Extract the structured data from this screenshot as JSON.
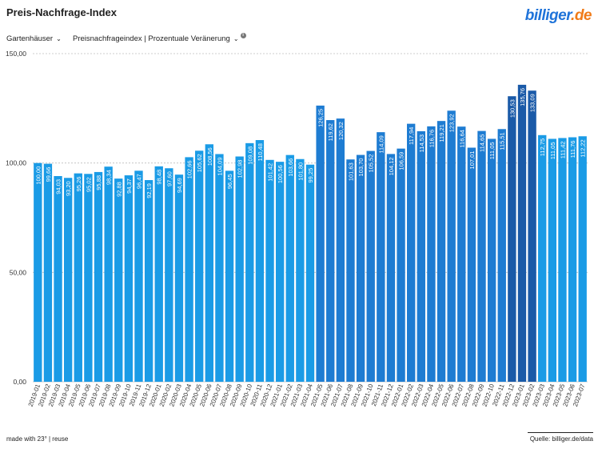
{
  "header": {
    "title": "Preis-Nachfrage-Index",
    "logo_main": "billiger",
    "logo_suffix": ".de"
  },
  "controls": {
    "category": "Gartenhäuser",
    "metric": "Preisnachfrageindex | Prozentuale Veränerung",
    "info_glyph": "i"
  },
  "footer": {
    "left": "made with 23° | reuse",
    "right": "Quelle: billiger.de/data"
  },
  "colors": {
    "bar_light": "#1a9be6",
    "bar_mid": "#1e7cd2",
    "bar_dark": "#1a5aa8",
    "grid": "#bdbdbd"
  },
  "chart_data": {
    "type": "bar",
    "title": "Preis-Nachfrage-Index",
    "xlabel": "",
    "ylabel": "",
    "ylim": [
      0,
      150
    ],
    "yticks": [
      "0,00",
      "50,00",
      "100,00",
      "150,00"
    ],
    "grid": true,
    "legend": "none",
    "categories": [
      "2019-01",
      "2019-02",
      "2019-03",
      "2019-04",
      "2019-05",
      "2019-06",
      "2019-07",
      "2019-08",
      "2019-09",
      "2019-10",
      "2019-11",
      "2019-12",
      "2020-01",
      "2020-02",
      "2020-03",
      "2020-04",
      "2020-05",
      "2020-06",
      "2020-07",
      "2020-08",
      "2020-09",
      "2020-10",
      "2020-11",
      "2020-12",
      "2021-01",
      "2021-02",
      "2021-03",
      "2021-04",
      "2021-05",
      "2021-06",
      "2021-07",
      "2021-08",
      "2021-09",
      "2021-10",
      "2021-11",
      "2021-12",
      "2022-01",
      "2022-02",
      "2022-03",
      "2022-04",
      "2022-05",
      "2022-06",
      "2022-07",
      "2022-08",
      "2022-09",
      "2022-10",
      "2022-11",
      "2022-12",
      "2023-01",
      "2023-02",
      "2023-03",
      "2023-04",
      "2023-05",
      "2023-06",
      "2023-07"
    ],
    "values": [
      100.0,
      99.66,
      94.03,
      93.2,
      95.26,
      95.02,
      95.88,
      98.34,
      92.88,
      94.37,
      96.47,
      92.19,
      98.48,
      97.6,
      94.69,
      102.66,
      105.62,
      108.56,
      104.09,
      96.45,
      102.98,
      109.08,
      110.48,
      101.42,
      100.56,
      103.66,
      101.8,
      99.25,
      126.25,
      119.62,
      120.32,
      101.63,
      103.7,
      105.52,
      114.09,
      104.12,
      106.59,
      117.94,
      114.53,
      116.76,
      119.21,
      123.92,
      116.64,
      107.01,
      114.65,
      111.05,
      115.51,
      130.53,
      135.76,
      133.09,
      112.75,
      111.05,
      111.42,
      111.76,
      112.22
    ],
    "labels": [
      "100,00",
      "99,66",
      "94,03",
      "93,20",
      "95,26",
      "95,02",
      "95,88",
      "98,34",
      "92,88",
      "94,37",
      "96,47",
      "92,19",
      "98,48",
      "97,60",
      "94,69",
      "102,66",
      "105,62",
      "108,56",
      "104,09",
      "96,45",
      "102,98",
      "109,08",
      "110,48",
      "101,42",
      "100,56",
      "103,66",
      "101,80",
      "99,25",
      "126,25",
      "119,62",
      "120,32",
      "101,63",
      "103,70",
      "105,52",
      "114,09",
      "104,12",
      "106,59",
      "117,94",
      "114,53",
      "116,76",
      "119,21",
      "123,92",
      "116,64",
      "107,01",
      "114,65",
      "111,05",
      "115,51",
      "130,53",
      "135,76",
      "133,09",
      "112,75",
      "111,05",
      "111,42",
      "111,76",
      "112,22"
    ]
  }
}
